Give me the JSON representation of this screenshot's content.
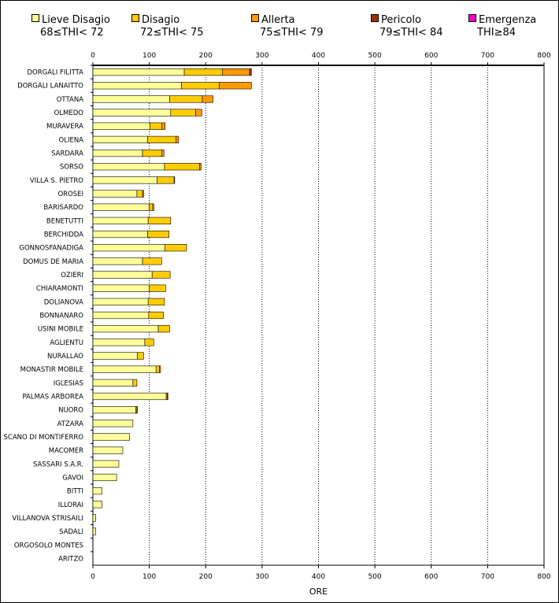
{
  "chart_data": {
    "type": "bar",
    "orientation": "horizontal",
    "stacked": true,
    "title": "",
    "xlabel": "ORE",
    "ylabel": "",
    "xlim": [
      0,
      800
    ],
    "xticks": [
      0,
      100,
      200,
      300,
      400,
      500,
      600,
      700,
      800
    ],
    "grid": "vertical dotted",
    "legend_position": "top",
    "categories": [
      "DORGALI FILITTA",
      "DORGALI LANAITTO",
      "OTTANA",
      "OLMEDO",
      "MURAVERA",
      "OLIENA",
      "SARDARA",
      "SORSO",
      "VILLA S. PIETRO",
      "OROSEI",
      "BARISARDO",
      "BENETUTTI",
      "BERCHIDDA",
      "GONNOSFANADIGA",
      "DOMUS DE MARIA",
      "OZIERI",
      "CHIARAMONTI",
      "DOLIANOVA",
      "BONNANARO",
      "USINI MOBILE",
      "AGLIENTU",
      "NURALLAO",
      "MONASTIR MOBILE",
      "IGLESIAS",
      "PALMAS ARBOREA",
      "NUORO",
      "ATZARA",
      "SCANO DI MONTIFERRO",
      "MACOMER",
      "SASSARI S.A.R.",
      "GAVOI",
      "BITTI",
      "ILLORAI",
      "VILLANOVA STRISAILI",
      "SADALI",
      "ORGOSOLO MONTES",
      "ARITZO"
    ],
    "series": [
      {
        "name": "Lieve Disagio",
        "range": "68≤THI< 72",
        "color": "#FFFF99",
        "values": [
          162,
          157,
          136,
          138,
          101,
          97,
          88,
          127,
          114,
          78,
          100,
          98,
          97,
          128,
          88,
          105,
          100,
          98,
          99,
          116,
          92,
          79,
          112,
          71,
          130,
          76,
          71,
          65,
          53,
          46,
          42,
          16,
          16,
          5,
          5,
          0,
          0
        ]
      },
      {
        "name": "Disagio",
        "range": "72≤THI< 75",
        "color": "#FFCC00",
        "values": [
          68,
          67,
          58,
          44,
          21,
          50,
          34,
          62,
          30,
          10,
          6,
          40,
          38,
          38,
          34,
          32,
          29,
          29,
          26,
          20,
          16,
          11,
          6,
          7,
          2,
          2,
          0,
          0,
          0,
          0,
          0,
          0,
          0,
          0,
          0,
          0,
          0
        ]
      },
      {
        "name": "Allerta",
        "range": "75≤THI< 79",
        "color": "#FF9900",
        "values": [
          48,
          57,
          19,
          11,
          6,
          5,
          4,
          3,
          1,
          2,
          2,
          0,
          0,
          0,
          0,
          0,
          0,
          0,
          0,
          0,
          0,
          0,
          2,
          0,
          1,
          1,
          0,
          0,
          0,
          0,
          0,
          0,
          0,
          0,
          0,
          0,
          0
        ]
      },
      {
        "name": "Pericolo",
        "range": "79≤THI< 84",
        "color": "#993300",
        "values": [
          3,
          0,
          0,
          0,
          0,
          0,
          0,
          0,
          0,
          0,
          0,
          0,
          0,
          0,
          0,
          0,
          0,
          0,
          0,
          0,
          0,
          0,
          0,
          0,
          0,
          0,
          0,
          0,
          0,
          0,
          0,
          0,
          0,
          0,
          0,
          0,
          0
        ]
      },
      {
        "name": "Emergenza",
        "range": "THI≥84",
        "color": "#FF00CC",
        "values": [
          0,
          0,
          0,
          0,
          0,
          0,
          0,
          0,
          0,
          0,
          0,
          0,
          0,
          0,
          0,
          0,
          0,
          0,
          0,
          0,
          0,
          0,
          0,
          0,
          0,
          0,
          0,
          0,
          0,
          0,
          0,
          0,
          0,
          0,
          0,
          0,
          0
        ]
      }
    ]
  }
}
